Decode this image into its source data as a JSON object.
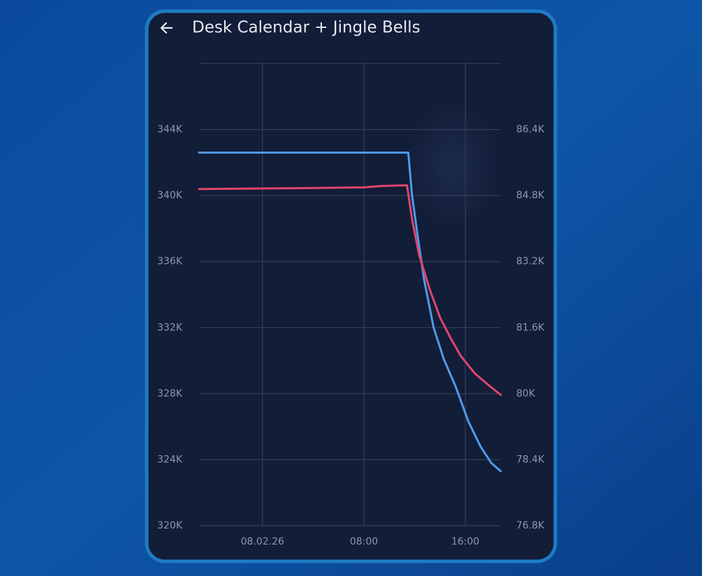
{
  "chart_data": {
    "type": "line",
    "title": "Desk Calendar + Jingle Bells",
    "xlim": [
      -5.0,
      18.8
    ],
    "xticks": [
      {
        "value": 0,
        "label": "08.02.26"
      },
      {
        "value": 8,
        "label": "08:00"
      },
      {
        "value": 16,
        "label": "16:00"
      }
    ],
    "ylim": [
      320000,
      348000
    ],
    "yticks": [
      {
        "value": 320000,
        "label": "320K"
      },
      {
        "value": 324000,
        "label": "324K"
      },
      {
        "value": 328000,
        "label": "328K"
      },
      {
        "value": 332000,
        "label": "332K"
      },
      {
        "value": 336000,
        "label": "336K"
      },
      {
        "value": 340000,
        "label": "340K"
      },
      {
        "value": 344000,
        "label": "344K"
      }
    ],
    "y2lim": [
      76800,
      88000
    ],
    "y2ticks": [
      {
        "value": 76800,
        "label": "76.8K"
      },
      {
        "value": 78400,
        "label": "78.4K"
      },
      {
        "value": 80000,
        "label": "80K"
      },
      {
        "value": 81600,
        "label": "81.6K"
      },
      {
        "value": 83200,
        "label": "83.2K"
      },
      {
        "value": 84800,
        "label": "84.8K"
      },
      {
        "value": 86400,
        "label": "86.4K"
      }
    ],
    "grid": true,
    "series": [
      {
        "color": "#4f9bea",
        "axis": "y",
        "x": [
          -5.0,
          11.5,
          11.8,
          12.25,
          12.75,
          13.5,
          14.3,
          15.25,
          16.25,
          17.2,
          18.05,
          18.8
        ],
        "values": [
          342600,
          342600,
          340000,
          337500,
          334900,
          332000,
          330100,
          328400,
          326300,
          324800,
          323800,
          323300
        ]
      },
      {
        "color": "#e0456c",
        "axis": "y2",
        "x": [
          -5.0,
          3.0,
          8.0,
          9.3,
          11.4,
          11.8,
          12.35,
          13.2,
          14.0,
          14.85,
          15.65,
          16.75,
          17.9,
          18.8
        ],
        "values": [
          84960,
          84980,
          85000,
          85030,
          85050,
          84220,
          83370,
          82520,
          81850,
          81340,
          80910,
          80490,
          80190,
          79970
        ]
      }
    ]
  }
}
